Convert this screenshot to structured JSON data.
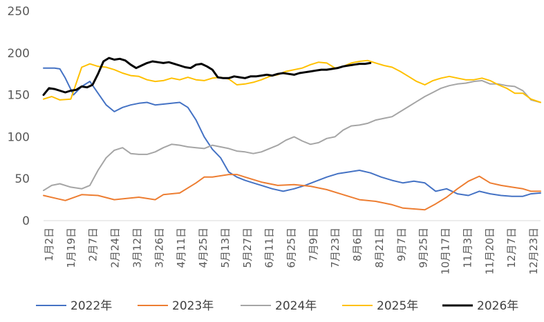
{
  "chart_data": {
    "type": "line",
    "title": "",
    "xlabel": "",
    "ylabel": "",
    "ylim": [
      0,
      250
    ],
    "yticks": [
      "0",
      "50",
      "100",
      "150",
      "200",
      "250"
    ],
    "grid": false,
    "legend_position": "bottom",
    "x_tick_labels": [
      "1月2日",
      "1月19日",
      "2月7日",
      "2月24日",
      "3月12日",
      "3月26日",
      "4月11日",
      "4月25日",
      "5月13日",
      "5月27日",
      "6月11日",
      "6月25日",
      "7月9日",
      "7月23日",
      "8月6日",
      "8月21日",
      "9月7日",
      "9月25日",
      "10月17日",
      "11月3日",
      "11月20日",
      "12月7日",
      "12月23日"
    ],
    "x_domain": [
      0,
      365
    ],
    "series": [
      {
        "name": "2022年",
        "color": "#4472C4",
        "x": [
          0,
          8,
          12,
          16,
          22,
          28,
          34,
          40,
          46,
          52,
          58,
          64,
          70,
          76,
          82,
          88,
          94,
          100,
          106,
          112,
          118,
          124,
          130,
          136,
          142,
          148,
          154,
          160,
          168,
          176,
          184,
          192,
          200,
          208,
          216,
          224,
          232,
          240,
          248,
          256,
          264,
          272,
          280,
          288,
          296,
          304,
          312,
          320,
          328,
          336,
          344,
          352,
          358,
          365
        ],
        "y": [
          182,
          182,
          181,
          170,
          150,
          160,
          166,
          152,
          138,
          130,
          135,
          138,
          140,
          141,
          138,
          139,
          140,
          141,
          135,
          120,
          100,
          85,
          75,
          58,
          52,
          48,
          45,
          42,
          38,
          35,
          38,
          42,
          47,
          52,
          56,
          58,
          60,
          57,
          52,
          48,
          45,
          47,
          45,
          35,
          38,
          32,
          30,
          35,
          32,
          30,
          29,
          29,
          32,
          33
        ]
      },
      {
        "name": "2023年",
        "color": "#ED7D31",
        "x": [
          0,
          8,
          16,
          28,
          40,
          52,
          58,
          70,
          82,
          88,
          100,
          112,
          118,
          124,
          136,
          142,
          148,
          160,
          172,
          184,
          196,
          208,
          220,
          232,
          244,
          256,
          264,
          272,
          280,
          288,
          296,
          304,
          312,
          320,
          328,
          336,
          344,
          352,
          358,
          365
        ],
        "y": [
          30,
          27,
          24,
          31,
          30,
          25,
          26,
          28,
          25,
          31,
          33,
          45,
          52,
          52,
          55,
          55,
          52,
          46,
          42,
          43,
          41,
          37,
          31,
          25,
          23,
          19,
          15,
          14,
          13,
          20,
          28,
          38,
          47,
          53,
          45,
          42,
          40,
          38,
          35,
          35
        ]
      },
      {
        "name": "2024年",
        "color": "#A5A5A5",
        "x": [
          0,
          6,
          12,
          20,
          28,
          34,
          40,
          46,
          52,
          58,
          64,
          70,
          76,
          82,
          88,
          94,
          100,
          106,
          112,
          118,
          124,
          130,
          136,
          142,
          148,
          154,
          160,
          166,
          172,
          178,
          184,
          190,
          196,
          202,
          208,
          214,
          220,
          226,
          232,
          238,
          244,
          250,
          256,
          262,
          268,
          274,
          280,
          286,
          292,
          298,
          304,
          310,
          316,
          322,
          328,
          334,
          340,
          346,
          352,
          358,
          365
        ],
        "y": [
          36,
          42,
          44,
          40,
          38,
          42,
          60,
          75,
          84,
          87,
          80,
          79,
          79,
          82,
          87,
          91,
          90,
          88,
          87,
          86,
          90,
          88,
          86,
          83,
          82,
          80,
          82,
          86,
          90,
          96,
          100,
          95,
          91,
          93,
          98,
          100,
          108,
          113,
          114,
          116,
          120,
          122,
          124,
          130,
          136,
          142,
          148,
          153,
          158,
          161,
          163,
          164,
          166,
          167,
          163,
          163,
          161,
          160,
          155,
          144,
          141
        ]
      },
      {
        "name": "2025年",
        "color": "#FFC000",
        "x": [
          0,
          6,
          12,
          20,
          28,
          34,
          40,
          46,
          52,
          58,
          64,
          70,
          76,
          82,
          88,
          94,
          100,
          106,
          112,
          118,
          124,
          130,
          136,
          142,
          148,
          154,
          160,
          166,
          172,
          178,
          184,
          190,
          196,
          202,
          208,
          214,
          220,
          226,
          232,
          238,
          244,
          250,
          256,
          262,
          268,
          274,
          280,
          286,
          292,
          298,
          304,
          310,
          316,
          322,
          328,
          334,
          340,
          346,
          352,
          358,
          365
        ],
        "y": [
          145,
          148,
          144,
          145,
          183,
          187,
          184,
          183,
          180,
          176,
          173,
          172,
          168,
          166,
          167,
          170,
          168,
          171,
          168,
          167,
          170,
          171,
          169,
          162,
          163,
          165,
          168,
          172,
          174,
          178,
          180,
          182,
          186,
          189,
          188,
          182,
          184,
          188,
          190,
          191,
          188,
          185,
          183,
          178,
          172,
          166,
          162,
          167,
          170,
          172,
          170,
          168,
          168,
          170,
          167,
          162,
          158,
          152,
          152,
          145,
          141
        ]
      },
      {
        "name": "2026年",
        "color": "#000000",
        "x": [
          0,
          4,
          8,
          12,
          16,
          20,
          24,
          28,
          32,
          36,
          40,
          44,
          48,
          52,
          56,
          60,
          64,
          68,
          72,
          76,
          80,
          84,
          88,
          92,
          96,
          100,
          104,
          108,
          112,
          116,
          120,
          124,
          128,
          132,
          136,
          140,
          144,
          148,
          152,
          156,
          160,
          164,
          168,
          172,
          176,
          180,
          184,
          188,
          192,
          196,
          200,
          204,
          208,
          212,
          216,
          220,
          224,
          228,
          232,
          236,
          240
        ],
        "y": [
          150,
          158,
          157,
          155,
          153,
          155,
          156,
          160,
          159,
          162,
          175,
          190,
          194,
          192,
          193,
          191,
          186,
          182,
          185,
          188,
          190,
          189,
          188,
          189,
          187,
          185,
          183,
          182,
          186,
          187,
          184,
          180,
          171,
          170,
          170,
          172,
          171,
          170,
          172,
          172,
          173,
          174,
          173,
          175,
          176,
          175,
          174,
          176,
          177,
          178,
          179,
          180,
          180,
          181,
          182,
          184,
          185,
          186,
          187,
          187,
          188
        ]
      }
    ]
  }
}
